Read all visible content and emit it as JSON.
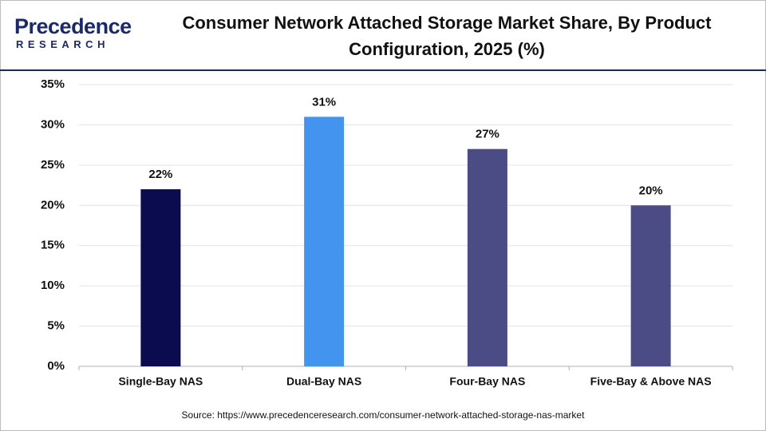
{
  "logo": {
    "name": "Precedence",
    "tagline": "RESEARCH"
  },
  "chart_data": {
    "type": "bar",
    "title": "Consumer Network Attached Storage Market Share, By Product Configuration, 2025 (%)",
    "categories": [
      "Single-Bay NAS",
      "Dual-Bay NAS",
      "Four-Bay NAS",
      "Five-Bay & Above NAS"
    ],
    "values": [
      22,
      31,
      27,
      20
    ],
    "value_labels": [
      "22%",
      "31%",
      "27%",
      "20%"
    ],
    "colors": [
      "#0b0b4f",
      "#4394ef",
      "#4b4c85",
      "#4b4c85"
    ],
    "ylim": [
      0,
      35
    ],
    "yticks": [
      {
        "value": 0,
        "label": "0%"
      },
      {
        "value": 5,
        "label": "5%"
      },
      {
        "value": 10,
        "label": "10%"
      },
      {
        "value": 15,
        "label": "15%"
      },
      {
        "value": 20,
        "label": "20%"
      },
      {
        "value": 25,
        "label": "25%"
      },
      {
        "value": 30,
        "label": "30%"
      },
      {
        "value": 35,
        "label": "35%"
      }
    ],
    "grid": true,
    "source": "Source: https://www.precedenceresearch.com/consumer-network-attached-storage-nas-market"
  }
}
